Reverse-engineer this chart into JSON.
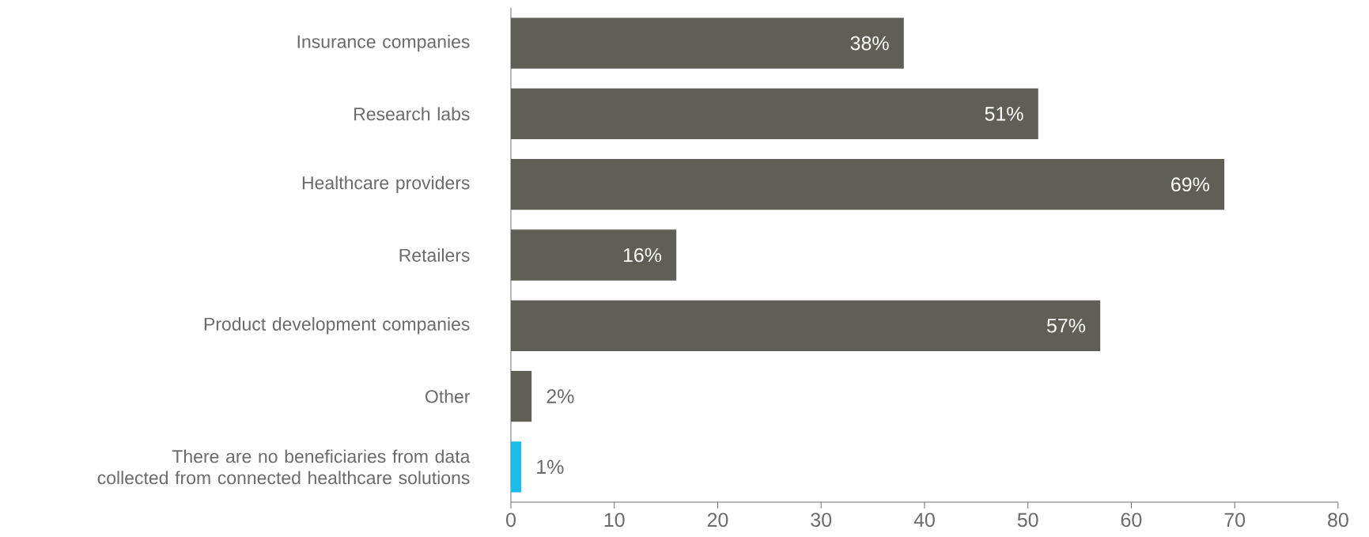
{
  "chart_data": {
    "type": "bar",
    "orientation": "horizontal",
    "categories": [
      "Insurance companies",
      "Research labs",
      "Healthcare providers",
      "Retailers",
      "Product development companies",
      "Other",
      "There are no beneficiaries from data collected from connected healthcare solutions"
    ],
    "values": [
      38,
      51,
      69,
      16,
      57,
      2,
      1
    ],
    "colors": [
      "#5f5f58",
      "#5f5f58",
      "#5f5f58",
      "#5f5f58",
      "#5f5f58",
      "#5f5f58",
      "#1bbbec"
    ],
    "value_labels": [
      "38%",
      "51%",
      "69%",
      "16%",
      "57%",
      "2%",
      "1%"
    ],
    "xlim": [
      0,
      80
    ],
    "xticks": [
      0,
      10,
      20,
      30,
      40,
      50,
      60,
      70,
      80
    ],
    "grid": false
  }
}
